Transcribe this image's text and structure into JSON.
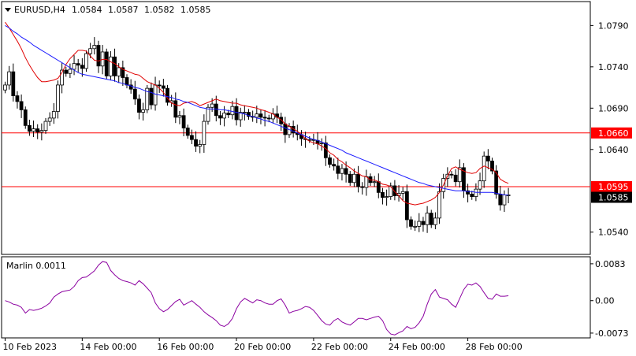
{
  "header": {
    "symbol": "EURUSD,H4",
    "o": "1.0584",
    "h": "1.0587",
    "l": "1.0582",
    "c": "1.0585"
  },
  "chart_data": [
    {
      "type": "candlestick",
      "title": "EURUSD,H4 1.0584 1.0587 1.0582 1.0585",
      "ylim": [
        1.0514,
        1.0818
      ],
      "y_ticks": [
        "1.0790",
        "1.0740",
        "1.0690",
        "1.0640",
        "1.0540"
      ],
      "y_tick_values": [
        1.079,
        1.074,
        1.069,
        1.064,
        1.054
      ],
      "x_tick_labels": [
        "10 Feb 2023",
        "14 Feb 00:00",
        "16 Feb 00:00",
        "20 Feb 00:00",
        "22 Feb 00:00",
        "24 Feb 00:00",
        "28 Feb 00:00"
      ],
      "x_tick_bars": [
        0,
        19,
        38,
        57,
        76,
        95,
        114
      ],
      "horizontal_lines": [
        {
          "value": 1.066,
          "label": "1.0660",
          "color": "#ff0000"
        },
        {
          "value": 1.0595,
          "label": "1.0595",
          "color": "#ff0000"
        }
      ],
      "current_price": {
        "value": 1.0585,
        "label": "1.0585"
      },
      "close_series": [
        1.0718,
        1.0734,
        1.0705,
        1.0698,
        1.0688,
        1.0669,
        1.0662,
        1.0665,
        1.0661,
        1.0663,
        1.0674,
        1.0678,
        1.0686,
        1.0718,
        1.0736,
        1.0732,
        1.0737,
        1.0744,
        1.0742,
        1.0738,
        1.0756,
        1.0762,
        1.0766,
        1.0741,
        1.0758,
        1.0729,
        1.0752,
        1.0729,
        1.0739,
        1.0727,
        1.0718,
        1.0713,
        1.0701,
        1.0685,
        1.0688,
        1.0714,
        1.0694,
        1.0718,
        1.0717,
        1.0714,
        1.0697,
        1.0699,
        1.0679,
        1.0681,
        1.0666,
        1.0657,
        1.0652,
        1.0644,
        1.0646,
        1.0674,
        1.0691,
        1.0695,
        1.0681,
        1.0678,
        1.0684,
        1.0682,
        1.0692,
        1.0676,
        1.0685,
        1.0685,
        1.068,
        1.0679,
        1.0683,
        1.0679,
        1.0678,
        1.0677,
        1.0683,
        1.0679,
        1.0671,
        1.0658,
        1.0668,
        1.066,
        1.0658,
        1.0653,
        1.0652,
        1.0652,
        1.0651,
        1.0647,
        1.0648,
        1.063,
        1.0622,
        1.062,
        1.0611,
        1.0617,
        1.061,
        1.06,
        1.061,
        1.0595,
        1.0594,
        1.0607,
        1.06,
        1.0601,
        1.0588,
        1.0582,
        1.0583,
        1.0596,
        1.0584,
        1.0587,
        1.0589,
        1.0555,
        1.0547,
        1.0547,
        1.0553,
        1.0549,
        1.0563,
        1.0549,
        1.0557,
        1.0589,
        1.0605,
        1.061,
        1.0609,
        1.0601,
        1.0618,
        1.059,
        1.0586,
        1.0583,
        1.0592,
        1.0602,
        1.0632,
        1.0626,
        1.0614,
        1.0586,
        1.0573,
        1.0585,
        1.0585
      ],
      "ma_fast": [
        1.0794,
        1.0787,
        1.0779,
        1.0771,
        1.0762,
        1.0751,
        1.0742,
        1.0734,
        1.0727,
        1.0722,
        1.0722,
        1.0723,
        1.0724,
        1.0726,
        1.0733,
        1.0743,
        1.075,
        1.0755,
        1.076,
        1.076,
        1.0759,
        1.0753,
        1.0748,
        1.0747,
        1.0749,
        1.0749,
        1.0746,
        1.0744,
        1.074,
        1.0737,
        1.0735,
        1.0733,
        1.0731,
        1.073,
        1.0726,
        1.0722,
        1.072,
        1.0718,
        1.0714,
        1.0709,
        1.0702,
        1.0696,
        1.0694,
        1.0693,
        1.0696,
        1.0697,
        1.0698,
        1.0696,
        1.0693,
        1.0695,
        1.0697,
        1.0699,
        1.0701,
        1.0699,
        1.0698,
        1.0697,
        1.0696,
        1.0696,
        1.0694,
        1.0693,
        1.0692,
        1.0691,
        1.069,
        1.0688,
        1.0687,
        1.0685,
        1.0683,
        1.0679,
        1.0676,
        1.0671,
        1.0668,
        1.0665,
        1.0662,
        1.0658,
        1.0653,
        1.065,
        1.0648,
        1.0647,
        1.0644,
        1.0641,
        1.0636,
        1.0633,
        1.0628,
        1.0625,
        1.0621,
        1.0618,
        1.0614,
        1.0611,
        1.0608,
        1.0607,
        1.0603,
        1.0603,
        1.0601,
        1.0598,
        1.0597,
        1.0595,
        1.0589,
        1.0584,
        1.0578,
        1.0575,
        1.0574,
        1.0573,
        1.0574,
        1.0575,
        1.0577,
        1.0579,
        1.0582,
        1.0588,
        1.0597,
        1.0608,
        1.0617,
        1.0619,
        1.0616,
        1.0614,
        1.0612,
        1.0611,
        1.0612,
        1.0617,
        1.062,
        1.0618,
        1.0616,
        1.0612,
        1.0604,
        1.0601,
        1.0599
      ],
      "ma_slow": [
        1.079,
        1.0787,
        1.0783,
        1.078,
        1.0776,
        1.0773,
        1.077,
        1.0766,
        1.0763,
        1.076,
        1.0757,
        1.0754,
        1.0751,
        1.0748,
        1.0745,
        1.0742,
        1.0739,
        1.0736,
        1.0733,
        1.0731,
        1.073,
        1.0729,
        1.0728,
        1.0727,
        1.0726,
        1.0725,
        1.0724,
        1.0723,
        1.0721,
        1.072,
        1.0718,
        1.0717,
        1.0715,
        1.0714,
        1.0712,
        1.071,
        1.0709,
        1.0707,
        1.0706,
        1.0705,
        1.0704,
        1.0703,
        1.0701,
        1.07,
        1.0698,
        1.0697,
        1.0695,
        1.0693,
        1.0691,
        1.069,
        1.0689,
        1.0689,
        1.0689,
        1.0688,
        1.0688,
        1.0687,
        1.0686,
        1.0685,
        1.0684,
        1.0683,
        1.0681,
        1.068,
        1.0678,
        1.0677,
        1.0675,
        1.0674,
        1.0672,
        1.067,
        1.0668,
        1.0666,
        1.0664,
        1.0662,
        1.066,
        1.0658,
        1.0656,
        1.0654,
        1.0652,
        1.0651,
        1.0649,
        1.0647,
        1.0645,
        1.0643,
        1.0641,
        1.0639,
        1.0636,
        1.0634,
        1.0632,
        1.063,
        1.0628,
        1.0626,
        1.0624,
        1.0622,
        1.062,
        1.0618,
        1.0616,
        1.0614,
        1.0612,
        1.061,
        1.0608,
        1.0606,
        1.0604,
        1.0602,
        1.06,
        1.0599,
        1.0597,
        1.0596,
        1.0595,
        1.0594,
        1.0593,
        1.0592,
        1.0591,
        1.059,
        1.059,
        1.059,
        1.0589,
        1.0589,
        1.0588,
        1.0588,
        1.0588,
        1.0588,
        1.0588,
        1.0587,
        1.0586,
        1.0585,
        1.0585
      ]
    },
    {
      "type": "line",
      "title": "Marlin 0.0011",
      "ylim": [
        -0.0082,
        0.0097
      ],
      "y_ticks": [
        "0.0083",
        "0.00",
        "-0.0073"
      ],
      "y_tick_values": [
        0.0083,
        0.0,
        -0.0073
      ],
      "values": [
        0.0,
        -0.0003,
        -0.0008,
        -0.001,
        -0.0015,
        -0.0028,
        -0.002,
        -0.0022,
        -0.002,
        -0.0017,
        -0.0012,
        -0.0005,
        0.0008,
        0.0015,
        0.002,
        0.0022,
        0.0024,
        0.0032,
        0.0045,
        0.0052,
        0.0053,
        0.006,
        0.0067,
        0.008,
        0.0088,
        0.0086,
        0.0068,
        0.0058,
        0.005,
        0.0045,
        0.0043,
        0.004,
        0.0035,
        0.0045,
        0.0038,
        0.0028,
        0.0018,
        -0.0005,
        -0.0018,
        -0.0025,
        -0.002,
        -0.0011,
        -0.0002,
        0.0003,
        -0.001,
        -0.0005,
        0.0,
        -0.0008,
        -0.0015,
        -0.0025,
        -0.0032,
        -0.0038,
        -0.0045,
        -0.0055,
        -0.0058,
        -0.0052,
        -0.004,
        -0.0018,
        -0.0003,
        0.0005,
        0.0,
        -0.0005,
        0.0002,
        0.0,
        -0.0005,
        -0.0008,
        -0.0008,
        0.0,
        0.0004,
        -0.001,
        -0.0028,
        -0.0024,
        -0.0022,
        -0.0018,
        -0.0013,
        -0.0015,
        -0.0022,
        -0.0033,
        -0.0045,
        -0.0053,
        -0.0055,
        -0.0045,
        -0.004,
        -0.0048,
        -0.0052,
        -0.0055,
        -0.0048,
        -0.004,
        -0.004,
        -0.0043,
        -0.004,
        -0.0037,
        -0.0035,
        -0.0045,
        -0.0065,
        -0.0075,
        -0.0077,
        -0.0072,
        -0.0068,
        -0.0058,
        -0.0063,
        -0.006,
        -0.005,
        -0.0035,
        -0.0008,
        0.0015,
        0.0025,
        0.0008,
        0.0005,
        0.0002,
        -0.0008,
        -0.0015,
        0.0005,
        0.0025,
        0.0037,
        0.0035,
        0.004,
        0.0032,
        0.0018,
        0.0005,
        0.0003,
        0.0015,
        0.001,
        0.001,
        0.0011
      ]
    }
  ],
  "colors": {
    "candle_up_body": "#ffffff",
    "candle_down_body": "#000000",
    "ma_fast": "#e00000",
    "ma_slow": "#1a1aff",
    "level_line": "#ff0000",
    "oscillator": "#8b00a0",
    "price_tag_bg": "#000000"
  }
}
